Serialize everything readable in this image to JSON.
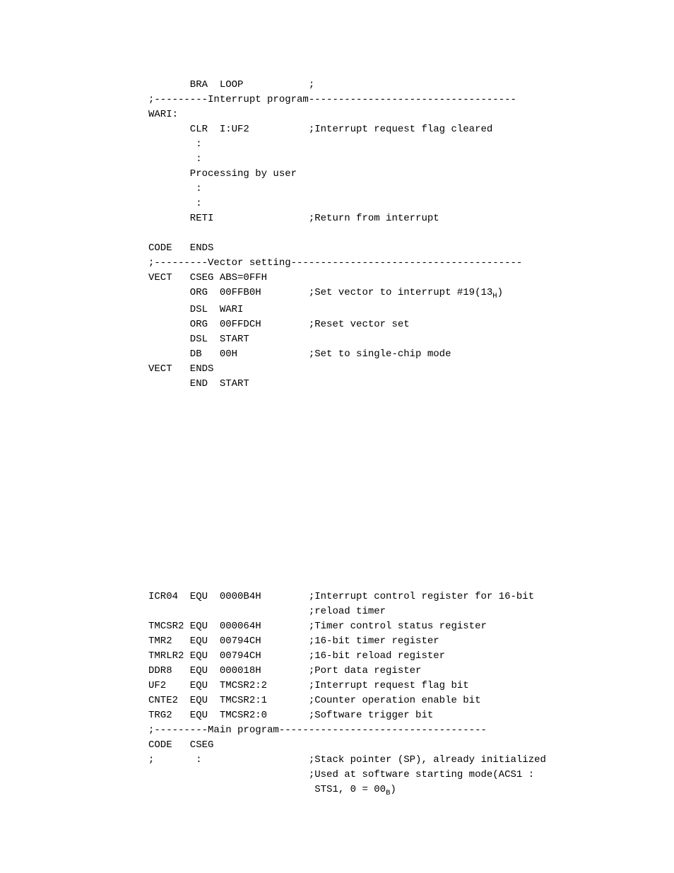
{
  "block1": {
    "lines": [
      {
        "label": "",
        "op": "BRA",
        "arg": "LOOP",
        "comment": ";"
      },
      {
        "full": ";---------Interrupt program-----------------------------------"
      },
      {
        "full": "WARI:"
      },
      {
        "label": "",
        "op": "CLR",
        "arg": "I:UF2",
        "comment": ";Interrupt request flag cleared"
      },
      {
        "label": "",
        "op": " :",
        "arg": "",
        "comment": ""
      },
      {
        "label": "",
        "op": " :",
        "arg": "",
        "comment": ""
      },
      {
        "label": "",
        "op": "Processing by user",
        "arg": "",
        "comment": ""
      },
      {
        "label": "",
        "op": " :",
        "arg": "",
        "comment": ""
      },
      {
        "label": "",
        "op": " :",
        "arg": "",
        "comment": ""
      },
      {
        "label": "",
        "op": "RETI",
        "arg": "",
        "comment": ";Return from interrupt"
      },
      {
        "full": ""
      },
      {
        "label": "CODE",
        "op": "ENDS",
        "arg": "",
        "comment": ""
      },
      {
        "full": ";---------Vector setting---------------------------------------"
      },
      {
        "label": "VECT",
        "op": "CSEG",
        "arg": "ABS=0FFH",
        "comment": ""
      },
      {
        "label": "",
        "op": "ORG",
        "arg": "00FFB0H",
        "comment": ";Set vector to interrupt #19(13",
        "sub": "H",
        "commentEnd": ")"
      },
      {
        "label": "",
        "op": "DSL",
        "arg": "WARI",
        "comment": ""
      },
      {
        "label": "",
        "op": "ORG",
        "arg": "00FFDCH",
        "comment": ";Reset vector set"
      },
      {
        "label": "",
        "op": "DSL",
        "arg": "START",
        "comment": ""
      },
      {
        "label": "",
        "op": "DB",
        "arg": "00H",
        "comment": ";Set to single-chip mode"
      },
      {
        "label": "VECT",
        "op": "ENDS",
        "arg": "",
        "comment": ""
      },
      {
        "label": "",
        "op": "END",
        "arg": "START",
        "comment": ""
      }
    ]
  },
  "block2": {
    "lines": [
      {
        "label": "ICR04",
        "op": "EQU",
        "arg": "0000B4H",
        "comment": ";Interrupt control register for 16-bit"
      },
      {
        "label": "",
        "op": "",
        "arg": "",
        "comment": ";reload timer"
      },
      {
        "label": "TMCSR2",
        "op": "EQU",
        "arg": "000064H",
        "comment": ";Timer control status register"
      },
      {
        "label": "TMR2",
        "op": "EQU",
        "arg": "00794CH",
        "comment": ";16-bit timer register"
      },
      {
        "label": "TMRLR2",
        "op": "EQU",
        "arg": "00794CH",
        "comment": ";16-bit reload register"
      },
      {
        "label": "DDR8",
        "op": "EQU",
        "arg": "000018H",
        "comment": ";Port data register"
      },
      {
        "label": "UF2",
        "op": "EQU",
        "arg": "TMCSR2:2",
        "comment": ";Interrupt request flag bit"
      },
      {
        "label": "CNTE2",
        "op": "EQU",
        "arg": "TMCSR2:1",
        "comment": ";Counter operation enable bit"
      },
      {
        "label": "TRG2",
        "op": "EQU",
        "arg": "TMCSR2:0",
        "comment": ";Software trigger bit"
      },
      {
        "full": ";---------Main program-----------------------------------"
      },
      {
        "label": "CODE",
        "op": "CSEG",
        "arg": "",
        "comment": ""
      },
      {
        "label": ";",
        "op": " :",
        "arg": "",
        "comment": ";Stack pointer (SP), already initialized"
      },
      {
        "label": "",
        "op": "",
        "arg": "",
        "comment": ";Used at software starting mode(ACS1 :"
      },
      {
        "label": "",
        "op": "",
        "arg": "",
        "comment": " STS1, 0 = 00",
        "sub": "B",
        "commentEnd": ")"
      }
    ]
  },
  "columns": {
    "label": 7,
    "op": 5,
    "arg": 15
  }
}
